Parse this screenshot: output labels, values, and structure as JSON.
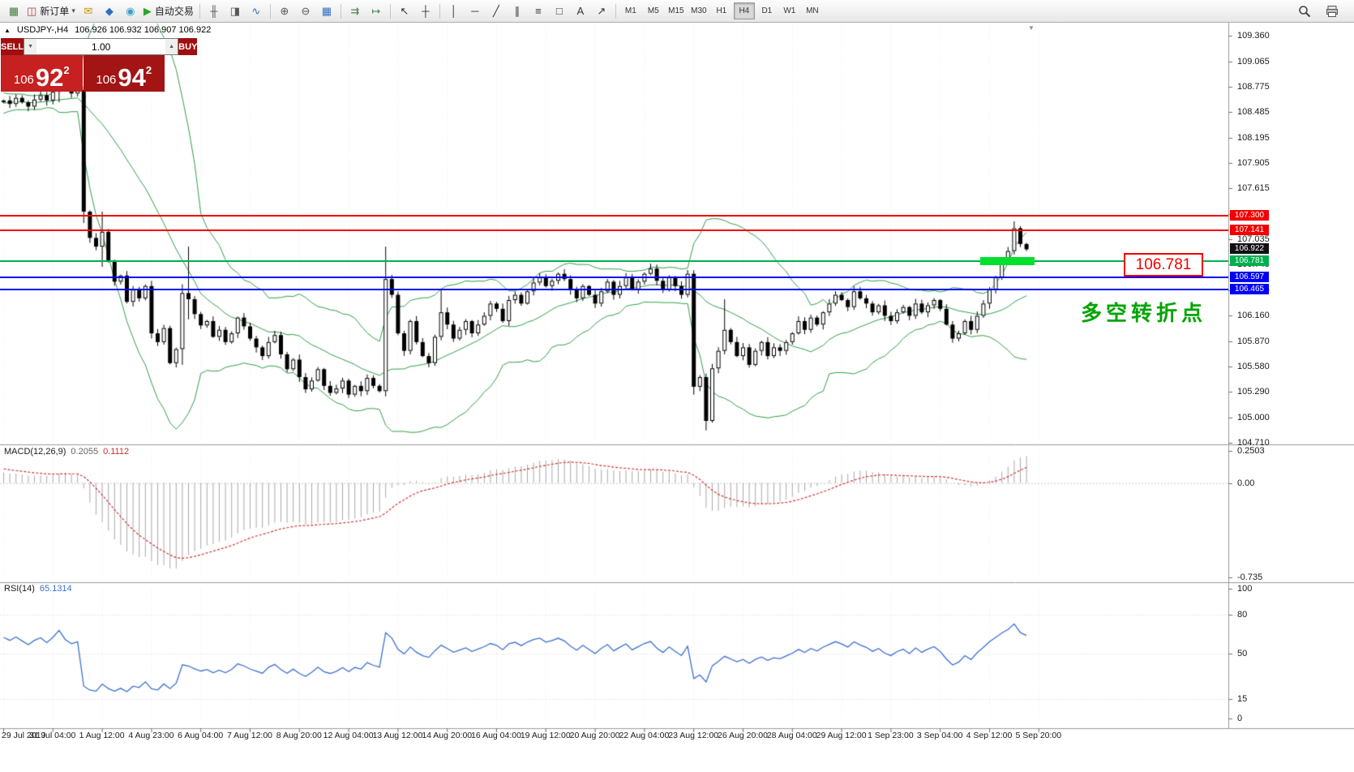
{
  "header": {
    "symbol": "USDJPY-,H4",
    "quote": "106.926 106.932 106.907 106.922",
    "collapse_icon": "▲"
  },
  "toolbar": {
    "active_timeframe": "H4",
    "items": [
      {
        "type": "icon",
        "name": "new-chart-icon",
        "glyph": "▦",
        "color": "#3f7d3f"
      },
      {
        "type": "button",
        "name": "new-order-button",
        "label": "新订单",
        "glyph": "◫",
        "color": "#b23b3b",
        "caret": true
      },
      {
        "type": "icon",
        "name": "mail-icon",
        "glyph": "✉",
        "color": "#c79100"
      },
      {
        "type": "icon",
        "name": "market-icon",
        "glyph": "◆",
        "color": "#2f6fc2"
      },
      {
        "type": "icon",
        "name": "community-icon",
        "glyph": "◉",
        "color": "#38a1c6"
      },
      {
        "type": "button",
        "name": "autotrading-button",
        "label": "自动交易",
        "glyph": "▶",
        "color": "#2ca52c"
      },
      {
        "type": "sep"
      },
      {
        "type": "icon",
        "name": "bar-chart-icon",
        "glyph": "╫",
        "color": "#555555"
      },
      {
        "type": "icon",
        "name": "candlestick-chart-icon",
        "glyph": "◨",
        "color": "#555555"
      },
      {
        "type": "icon",
        "name": "line-chart-icon",
        "glyph": "∿",
        "color": "#2f6fc2"
      },
      {
        "type": "sep"
      },
      {
        "type": "icon",
        "name": "zoom-in-icon",
        "glyph": "⊕",
        "color": "#555555"
      },
      {
        "type": "icon",
        "name": "zoom-out-icon",
        "glyph": "⊖",
        "color": "#555555"
      },
      {
        "type": "icon",
        "name": "tile-windows-icon",
        "glyph": "▦",
        "color": "#2f6fc2"
      },
      {
        "type": "sep"
      },
      {
        "type": "icon",
        "name": "auto-scroll-icon",
        "glyph": "⇉",
        "color": "#3f7d3f"
      },
      {
        "type": "icon",
        "name": "chart-shift-icon",
        "glyph": "↦",
        "color": "#3f7d3f"
      },
      {
        "type": "sep"
      },
      {
        "type": "icon",
        "name": "cursor-icon",
        "glyph": "↖",
        "color": "#333333"
      },
      {
        "type": "icon",
        "name": "crosshair-icon",
        "glyph": "┼",
        "color": "#333333"
      },
      {
        "type": "sep"
      },
      {
        "type": "icon",
        "name": "vertical-line-icon",
        "glyph": "│",
        "color": "#333333"
      },
      {
        "type": "icon",
        "name": "horizontal-line-icon",
        "glyph": "─",
        "color": "#333333"
      },
      {
        "type": "icon",
        "name": "trendline-icon",
        "glyph": "╱",
        "color": "#333333"
      },
      {
        "type": "icon",
        "name": "equidistant-channel-icon",
        "glyph": "∥",
        "color": "#333333"
      },
      {
        "type": "icon",
        "name": "fibonacci-icon",
        "glyph": "≡",
        "color": "#333333"
      },
      {
        "type": "icon",
        "name": "shapes-icon",
        "glyph": "□",
        "color": "#333333"
      },
      {
        "type": "icon",
        "name": "text-label-icon",
        "glyph": "A",
        "color": "#333333"
      },
      {
        "type": "icon",
        "name": "arrow-object-icon",
        "glyph": "↗",
        "color": "#333333"
      },
      {
        "type": "sep"
      },
      {
        "type": "tf",
        "label": "M1"
      },
      {
        "type": "tf",
        "label": "M5"
      },
      {
        "type": "tf",
        "label": "M15"
      },
      {
        "type": "tf",
        "label": "M30"
      },
      {
        "type": "tf",
        "label": "H1"
      },
      {
        "type": "tf",
        "label": "H4"
      },
      {
        "type": "tf",
        "label": "D1"
      },
      {
        "type": "tf",
        "label": "W1"
      },
      {
        "type": "tf",
        "label": "MN"
      }
    ]
  },
  "trade_panel": {
    "sell_label": "SELL",
    "buy_label": "BUY",
    "volume": "1.00",
    "sell_small": "106",
    "sell_big": "92",
    "sell_sup": "2",
    "buy_small": "106",
    "buy_big": "94",
    "buy_sup": "2"
  },
  "colors": {
    "header_red": "#9e0f0f",
    "sell_price_bg": "#c62020",
    "buy_price_bg": "#a31414",
    "level_red": "#f20000",
    "level_blue": "#0000f2",
    "level_green": "#00b050",
    "current_badge": "#111111",
    "highlight_green": "#00e02e",
    "band_green": "#2f9e44",
    "rsi_blue": "#3b6fd1",
    "macd_gray": "#a8a8a8",
    "macd_signal_red": "#d23333"
  },
  "chart_data": {
    "type": "candlestick",
    "symbol": "USDJPY-",
    "period": "H4",
    "open_first": 108.6,
    "pre_closes": [
      107.75,
      107.85,
      108.05,
      108.3,
      108.55,
      108.75,
      108.95,
      109.05,
      108.9,
      108.7,
      108.55,
      108.45,
      108.5,
      108.6,
      108.7,
      108.65,
      108.55,
      108.5,
      108.58,
      108.64,
      108.6,
      108.55,
      108.62,
      108.66,
      108.6,
      108.56,
      108.6,
      108.64,
      108.6,
      108.58
    ],
    "closes": [
      108.62,
      108.58,
      108.65,
      108.6,
      108.55,
      108.63,
      108.68,
      108.62,
      108.72,
      108.88,
      108.76,
      108.7,
      108.74,
      107.35,
      107.05,
      106.95,
      107.12,
      106.78,
      106.55,
      106.62,
      106.32,
      106.46,
      106.36,
      106.5,
      105.96,
      105.86,
      106.02,
      105.62,
      105.78,
      106.42,
      106.35,
      106.18,
      106.05,
      106.1,
      105.92,
      106.0,
      105.86,
      105.96,
      106.14,
      106.04,
      105.9,
      105.8,
      105.7,
      105.86,
      105.94,
      105.72,
      105.55,
      105.66,
      105.46,
      105.32,
      105.42,
      105.55,
      105.36,
      105.28,
      105.33,
      105.42,
      105.26,
      105.36,
      105.3,
      105.45,
      105.36,
      105.3,
      106.58,
      106.4,
      105.96,
      105.76,
      106.1,
      105.86,
      105.7,
      105.62,
      105.92,
      106.2,
      106.06,
      105.9,
      106.0,
      106.1,
      105.96,
      106.06,
      106.16,
      106.3,
      106.24,
      106.1,
      106.34,
      106.4,
      106.3,
      106.44,
      106.54,
      106.6,
      106.5,
      106.56,
      106.64,
      106.58,
      106.46,
      106.36,
      106.5,
      106.4,
      106.3,
      106.44,
      106.55,
      106.4,
      106.5,
      106.6,
      106.46,
      106.55,
      106.64,
      106.7,
      106.56,
      106.46,
      106.6,
      106.5,
      106.4,
      106.64,
      105.35,
      105.46,
      104.96,
      105.56,
      105.76,
      106.0,
      105.86,
      105.7,
      105.8,
      105.6,
      105.76,
      105.86,
      105.7,
      105.8,
      105.76,
      105.86,
      105.96,
      106.1,
      106.0,
      106.14,
      106.06,
      106.2,
      106.3,
      106.4,
      106.34,
      106.26,
      106.44,
      106.36,
      106.3,
      106.2,
      106.28,
      106.16,
      106.1,
      106.2,
      106.26,
      106.16,
      106.3,
      106.2,
      106.28,
      106.34,
      106.24,
      106.06,
      105.9,
      105.96,
      106.1,
      106.0,
      106.16,
      106.3,
      106.46,
      106.6,
      106.76,
      106.9,
      107.16,
      106.98,
      106.92
    ],
    "wick_overrides": {
      "9": [
        108.98,
        108.6
      ],
      "13": [
        108.78,
        107.22
      ],
      "16": [
        107.35,
        106.72
      ],
      "29": [
        106.52,
        105.6
      ],
      "30": [
        106.95,
        106.12
      ],
      "62": [
        106.95,
        105.24
      ],
      "71": [
        106.46,
        105.88
      ],
      "112": [
        106.68,
        105.26
      ],
      "114": [
        105.5,
        104.85
      ],
      "117": [
        106.35,
        105.72
      ],
      "164": [
        107.24,
        106.86
      ]
    },
    "bollinger": {
      "period": 20,
      "deviation": 2,
      "color": "#2f9e44"
    },
    "price_axis": {
      "ticks": [
        109.36,
        109.065,
        108.775,
        108.485,
        108.195,
        107.905,
        107.615,
        107.325,
        107.035,
        106.745,
        106.45,
        106.16,
        105.87,
        105.58,
        105.29,
        105.0,
        104.71
      ]
    },
    "levels": [
      {
        "name": "resistance-line-107300",
        "label": "107.300",
        "price": 107.3,
        "color": "#f20000",
        "thickness": 2
      },
      {
        "name": "resistance-line-107141",
        "label": "107.141",
        "price": 107.141,
        "color": "#f20000",
        "thickness": 2
      },
      {
        "name": "current-price",
        "label": "106.922",
        "price": 106.922,
        "color": "#111111",
        "line": false
      },
      {
        "name": "pivot-line-106781",
        "label": "106.781",
        "price": 106.781,
        "color": "#00b050",
        "thickness": 2
      },
      {
        "name": "support-line-106597",
        "label": "106.597",
        "price": 106.597,
        "color": "#0000f2",
        "thickness": 2
      },
      {
        "name": "support-line-106465",
        "label": "106.465",
        "price": 106.465,
        "color": "#0000f2",
        "thickness": 2
      }
    ],
    "highlight": {
      "price": 106.781,
      "start": 159,
      "end": 167,
      "color": "#00e02e"
    },
    "callout": {
      "text": "106.781",
      "color": "#f20000"
    },
    "annotation": {
      "text": "多空转折点",
      "color": "#00a400"
    },
    "macd": {
      "label": "MACD(12,26,9)",
      "value1": "0.2055",
      "value2": "0.1112",
      "fast": 12,
      "slow": 26,
      "signal": 9,
      "axis": [
        "0.2503",
        "0.00",
        "-0.735"
      ]
    },
    "rsi": {
      "label": "RSI(14)",
      "value": "65.1314",
      "period": 14,
      "axis": [
        "100",
        "80",
        "50",
        "15",
        "0"
      ]
    },
    "time_axis": {
      "step_candles": 8,
      "labels": [
        "29 Jul 2019",
        "31 Jul 04:00",
        "1 Aug 12:00",
        "4 Aug 23:00",
        "6 Aug 04:00",
        "7 Aug 12:00",
        "8 Aug 20:00",
        "12 Aug 04:00",
        "13 Aug 12:00",
        "14 Aug 20:00",
        "16 Aug 04:00",
        "19 Aug 12:00",
        "20 Aug 20:00",
        "22 Aug 04:00",
        "23 Aug 12:00",
        "26 Aug 20:00",
        "28 Aug 04:00",
        "29 Aug 12:00",
        "1 Sep 23:00",
        "3 Sep 04:00",
        "4 Sep 12:00",
        "5 Sep 20:00"
      ]
    }
  }
}
